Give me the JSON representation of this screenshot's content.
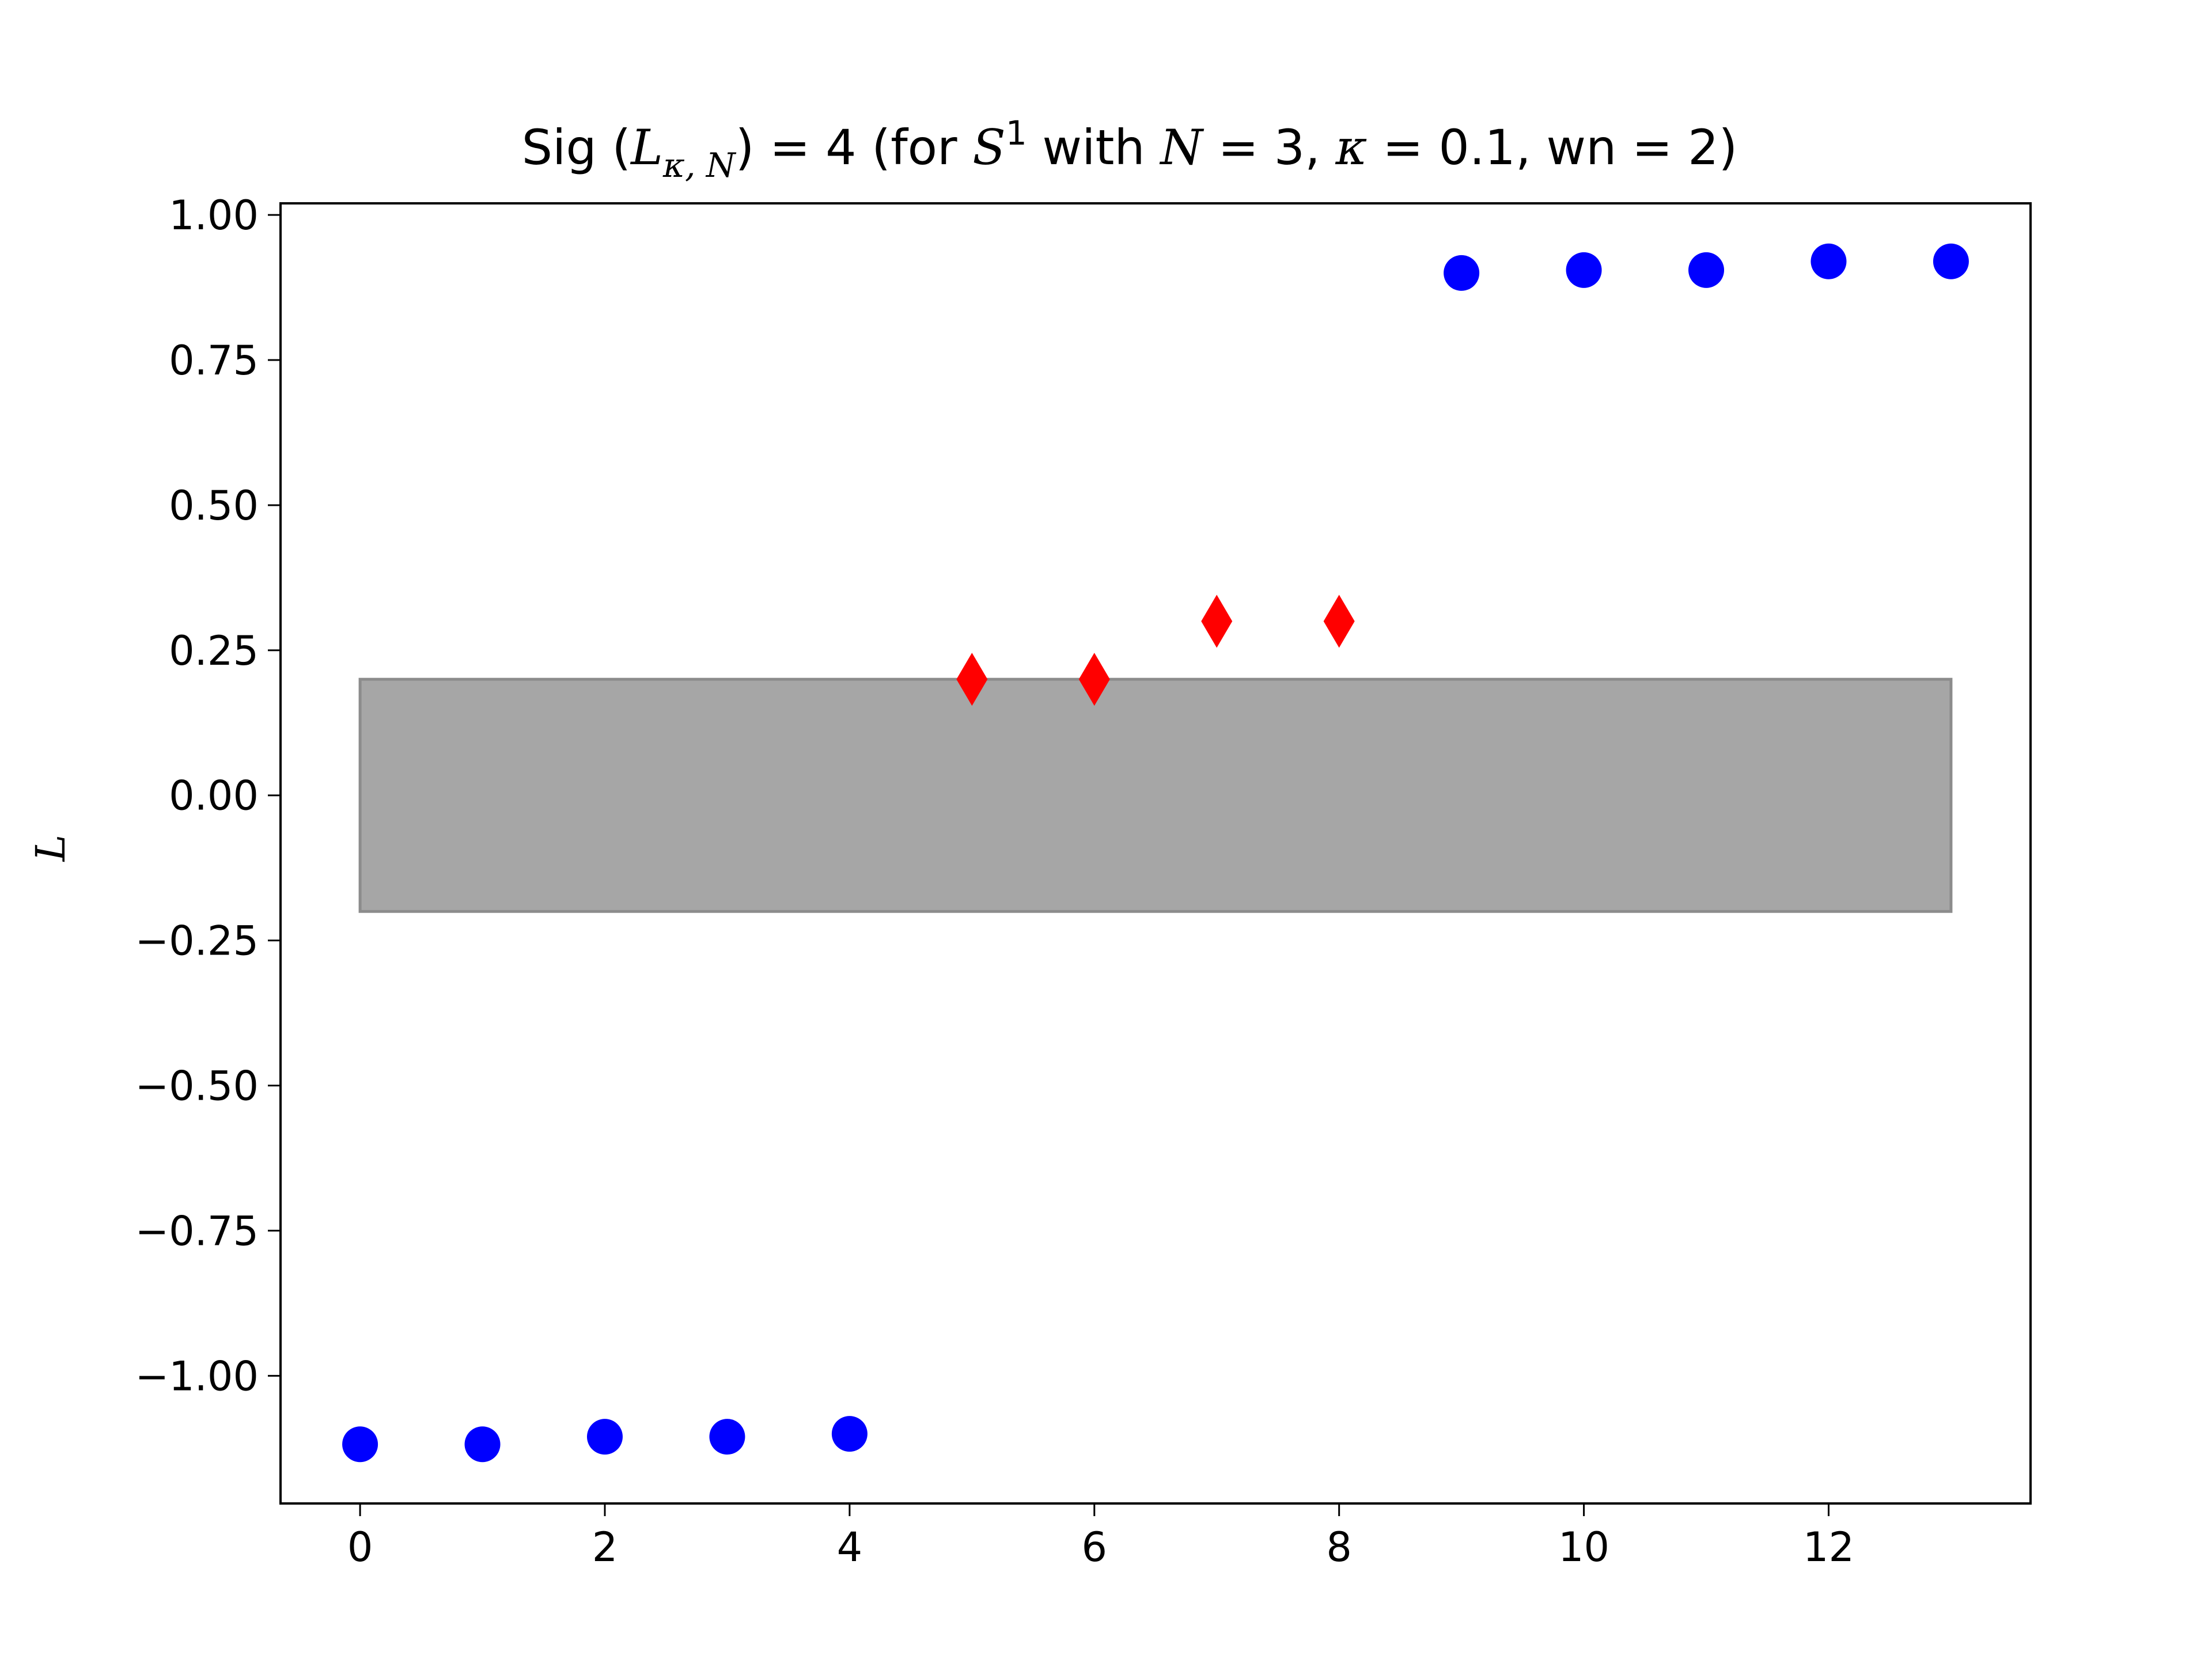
{
  "chart_data": {
    "type": "scatter",
    "title": {
      "parts": [
        {
          "t": "Sig (",
          "math": false
        },
        {
          "t": "L",
          "math": true
        },
        {
          "t": "κ, N",
          "math": true,
          "sub": true
        },
        {
          "t": ") = 4 (for ",
          "math": false
        },
        {
          "t": "S",
          "math": true
        },
        {
          "t": "1",
          "math": false,
          "sup": true
        },
        {
          "t": " with ",
          "math": false
        },
        {
          "t": "N",
          "math": true
        },
        {
          "t": " = 3, ",
          "math": false
        },
        {
          "t": "κ",
          "math": true
        },
        {
          "t": " = 0.1, wn  = 2)",
          "math": false
        }
      ]
    },
    "xlabel": "",
    "ylabel": "L",
    "xlim": [
      -0.65,
      13.65
    ],
    "ylim": [
      -1.22,
      1.02
    ],
    "x_ticks": [
      0,
      2,
      4,
      6,
      8,
      10,
      12
    ],
    "y_ticks": [
      1.0,
      0.75,
      0.5,
      0.25,
      0.0,
      -0.25,
      -0.5,
      -0.75,
      -1.0
    ],
    "y_tick_labels": [
      "1.00",
      "0.75",
      "0.50",
      "0.25",
      "0.00",
      "−0.25",
      "−0.50",
      "−0.75",
      "−1.00"
    ],
    "band": {
      "x": [
        0,
        13
      ],
      "y": [
        -0.2,
        0.2
      ],
      "color": "#a6a6a6",
      "edge_color": "#8c8c8c"
    },
    "series": [
      {
        "marker": "circle",
        "color": "#0000ff",
        "x": [
          0,
          1,
          2,
          3,
          4
        ],
        "y": [
          -1.118,
          -1.118,
          -1.105,
          -1.105,
          -1.1
        ]
      },
      {
        "marker": "diamond",
        "color": "#ff0000",
        "x": [
          5,
          6,
          7,
          8
        ],
        "y": [
          0.2,
          0.2,
          0.3,
          0.3
        ]
      },
      {
        "marker": "circle",
        "color": "#0000ff",
        "x": [
          9,
          10,
          11,
          12,
          13
        ],
        "y": [
          0.9,
          0.905,
          0.905,
          0.92,
          0.92
        ]
      }
    ]
  }
}
